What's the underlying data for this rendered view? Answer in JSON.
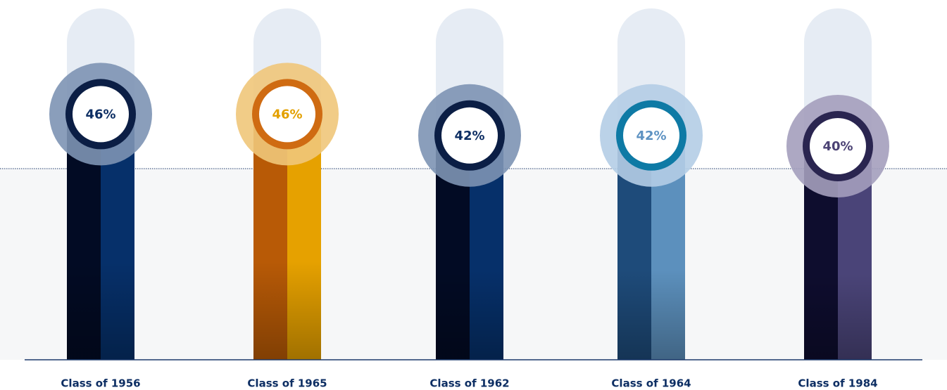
{
  "chart_data": {
    "type": "bar",
    "categories": [
      "Class of 1956",
      "Class of 1965",
      "Class of 1962",
      "Class of 1964",
      "Class of 1984"
    ],
    "values": [
      46,
      46,
      42,
      42,
      40
    ],
    "value_labels": [
      "46%",
      "46%",
      "42%",
      "42%",
      "40%"
    ],
    "colors": [
      {
        "left": "#020b24",
        "right": "#06306a",
        "halo": "#7d93b4",
        "ring": "#0b1e45",
        "text": "#0d2e63"
      },
      {
        "left": "#b85a06",
        "right": "#e6a100",
        "halo": "#f0c77a",
        "ring": "#cf6b12",
        "text": "#e3a000"
      },
      {
        "left": "#020b24",
        "right": "#06306a",
        "halo": "#7d93b4",
        "ring": "#0b1e45",
        "text": "#0d2e63"
      },
      {
        "left": "#1e4b7a",
        "right": "#5c90bd",
        "halo": "#b4cde6",
        "ring": "#0e7aa5",
        "text": "#5d92c2"
      },
      {
        "left": "#0e0d2e",
        "right": "#4a4478",
        "halo": "#a49fbd",
        "ring": "#2a2550",
        "text": "#4b4274"
      }
    ]
  }
}
